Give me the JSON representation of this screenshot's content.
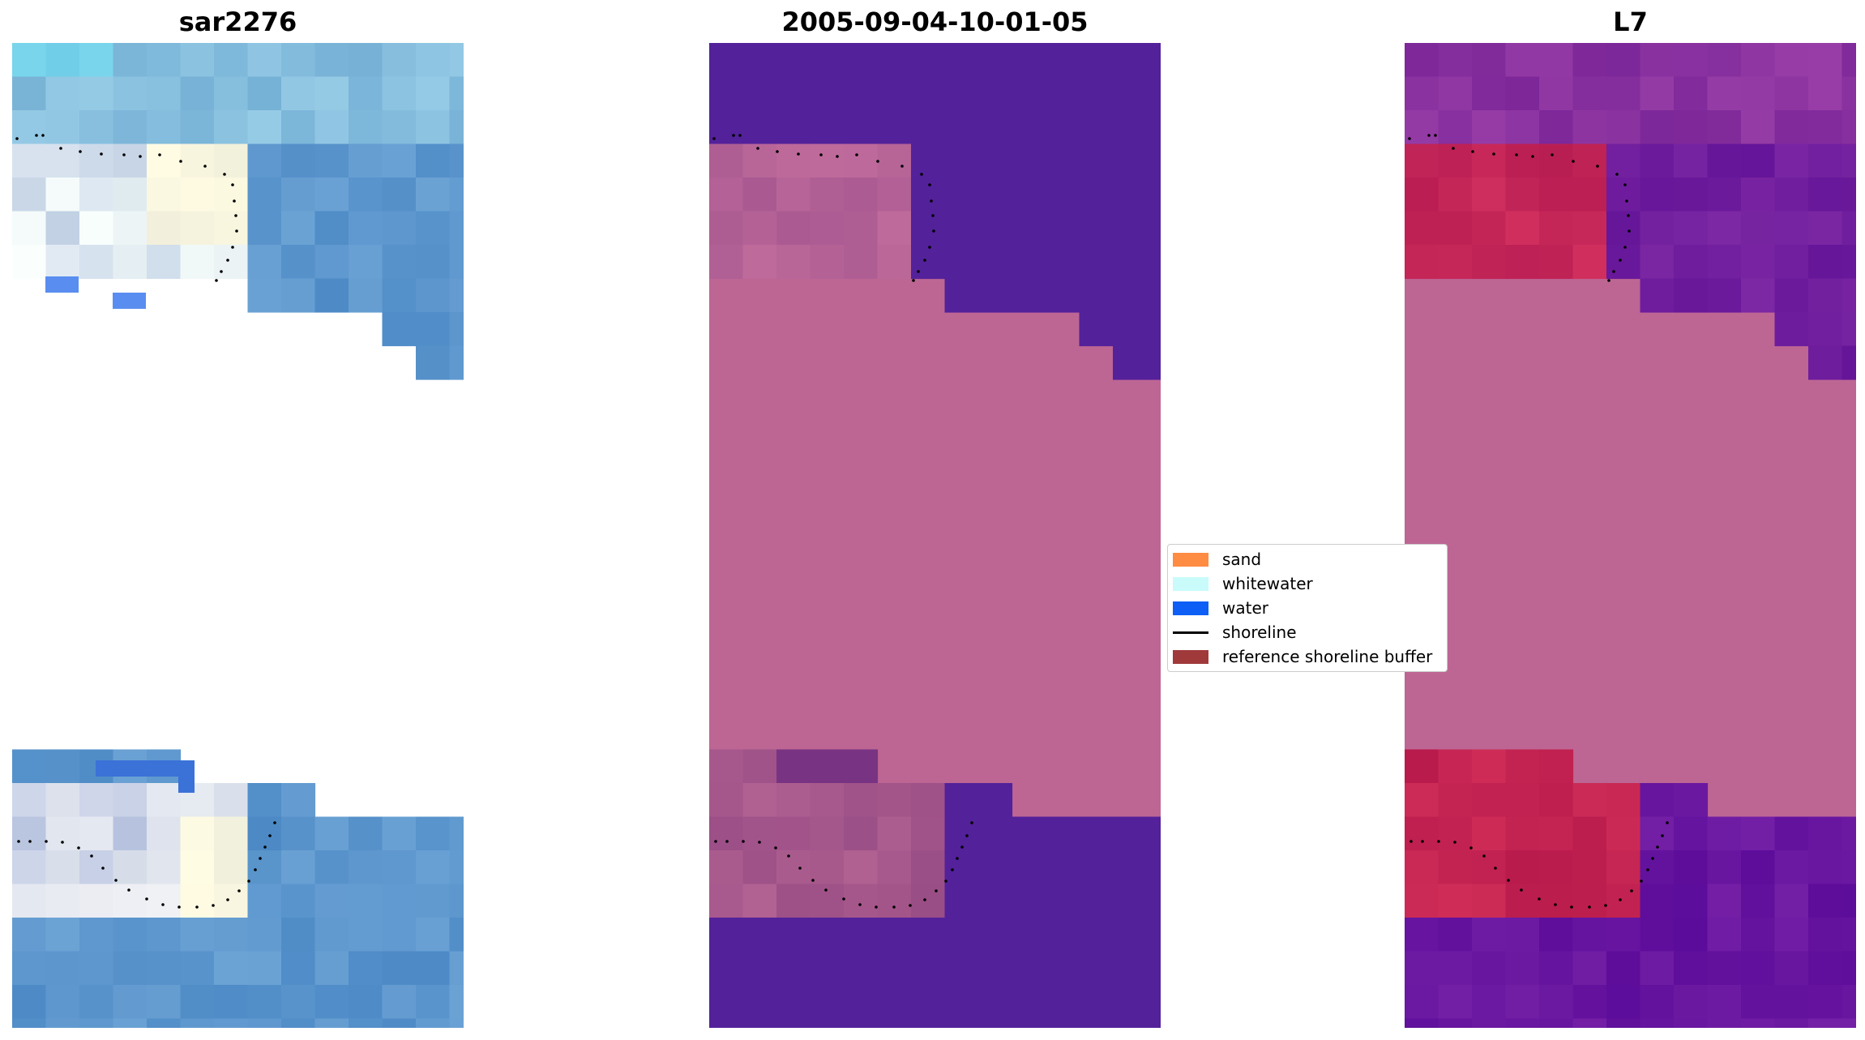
{
  "titles": {
    "left": "sar2276",
    "center": "2005-09-04-10-01-05",
    "right": "L7"
  },
  "legend": {
    "items": [
      {
        "label": "sand",
        "kind": "patch",
        "color": "#ff8c42"
      },
      {
        "label": "whitewater",
        "kind": "patch",
        "color": "#c9fbfb"
      },
      {
        "label": "water",
        "kind": "patch",
        "color": "#0d5ff5"
      },
      {
        "label": "shoreline",
        "kind": "line",
        "color": "#000000"
      },
      {
        "label": "reference shoreline buffer",
        "kind": "patch",
        "color": "#a0393a"
      }
    ]
  },
  "chart_data": [
    {
      "type": "heatmap",
      "title": "sar2276",
      "grid": false,
      "image": "satellite rgb",
      "overlay": "shoreline (dotted, black)"
    },
    {
      "type": "heatmap",
      "title": "2005-09-04-10-01-05",
      "grid": false,
      "overlay": "shoreline (dotted, black)",
      "colors": {
        "classified": "#bd6694",
        "water": "#53219a"
      }
    },
    {
      "type": "heatmap",
      "title": "L7",
      "grid": false,
      "overlay": "shoreline (dotted, black)",
      "colors": {
        "buffer": "#bd6694",
        "land": "#c2234f",
        "water": "#6a139c"
      }
    }
  ]
}
